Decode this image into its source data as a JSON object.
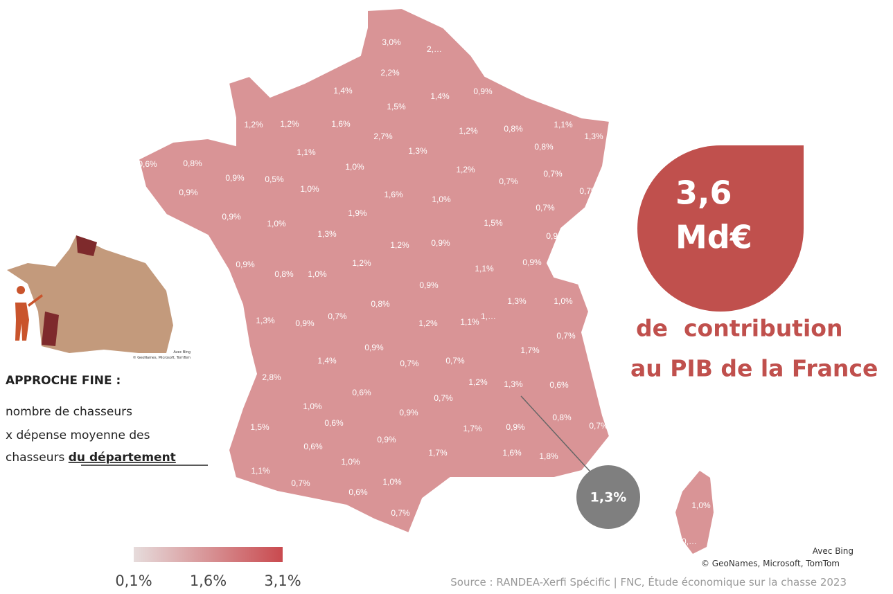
{
  "map": {
    "region_labels": [
      "3,0%",
      "2,…",
      "2,2%",
      "1,4%",
      "1,4%",
      "0,9%",
      "1,5%",
      "1,2%",
      "1,2%",
      "1,6%",
      "2,7%",
      "1,2%",
      "0,8%",
      "1,1%",
      "1,3%",
      "0,6%",
      "0,8%",
      "1,1%",
      "1,3%",
      "0,8%",
      "1,0%",
      "1,2%",
      "0,9%",
      "0,5%",
      "0,9%",
      "1,0%",
      "1,6%",
      "1,0%",
      "0,7%",
      "0,7%",
      "0,7%",
      "0,7%",
      "0,9%",
      "1,9%",
      "1,0%",
      "1,5%",
      "1,3%",
      "1,2%",
      "0,9%",
      "0,9%",
      "0,9%",
      "0,8%",
      "1,0%",
      "1,2%",
      "1,1%",
      "0,9%",
      "0,9%",
      "1,3%",
      "1,0%",
      "0,8%",
      "0,7%",
      "1,3%",
      "0,9%",
      "1,2%",
      "1,1%",
      "1,…",
      "1,7%",
      "0,7%",
      "0,9%",
      "1,4%",
      "0,7%",
      "0,7%",
      "2,8%",
      "1,2%",
      "1,3%",
      "0,6%",
      "0,6%",
      "0,7%",
      "0,9%",
      "1,0%",
      "0,6%",
      "0,8%",
      "0,7%",
      "1,5%",
      "0,9%",
      "1,7%",
      "0,9%",
      "0,6%",
      "1,7%",
      "1,6%",
      "1,8%",
      "1,0%",
      "1,1%",
      "1,0%",
      "0,7%",
      "0,6%",
      "0,7%",
      "1,0%",
      "0,…"
    ],
    "callout": "1,3%",
    "attribution_top": "Avec Bing",
    "attribution_bottom": "© GeoNames, Microsoft, TomTom",
    "inset_attribution_top": "Avec Bing",
    "inset_attribution_bottom": "© GeoNames, Microsoft, TomTom"
  },
  "highlight": {
    "amount_line1": "3,6",
    "amount_line2": "Md€",
    "caption_line1": "de  contribution",
    "caption_line2": "au PIB de la France"
  },
  "method": {
    "title": "APPROCHE FINE :",
    "line1": "nombre de chasseurs",
    "line2": "x dépense moyenne des",
    "line3_plain": "chasseurs ",
    "line3_bold": "du département"
  },
  "legend": {
    "colors": [
      "#e6dcdc",
      "#c94a4f"
    ],
    "ticks": [
      {
        "value": 0.1,
        "label": "0,1%"
      },
      {
        "value": 1.6,
        "label": "1,6%"
      },
      {
        "value": 3.1,
        "label": "3,1%"
      }
    ],
    "lim": [
      0.1,
      3.1
    ]
  },
  "source": "Source : RANDEA-Xerfi Spécific | FNC, Étude économique sur la chasse 2023"
}
